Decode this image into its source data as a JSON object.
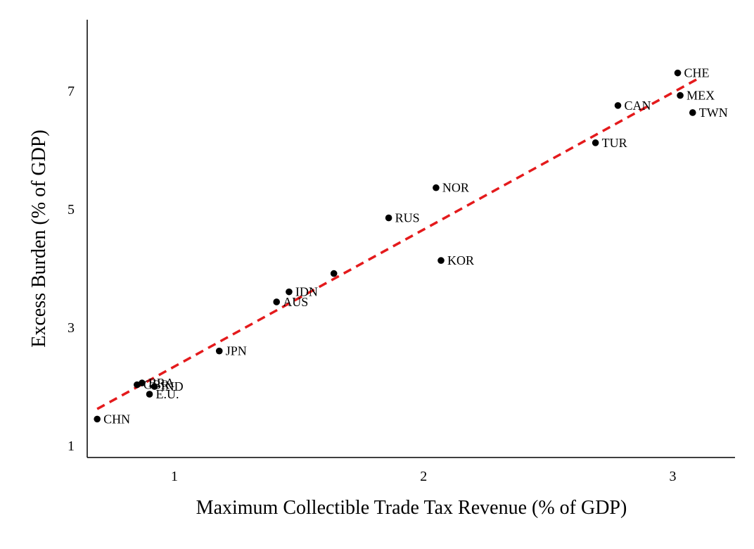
{
  "chart_data": {
    "type": "scatter",
    "title": "",
    "xlabel": "Maximum Collectible Trade Tax Revenue (% of GDP)",
    "ylabel": "Excess Burden (% of GDP)",
    "xlim": [
      0.65,
      3.25
    ],
    "ylim": [
      0.8,
      8.2
    ],
    "xticks": [
      1,
      2,
      3
    ],
    "yticks": [
      1,
      3,
      5,
      7
    ],
    "grid": false,
    "colors": {
      "points": "#000000",
      "fit_line": "#e41a1c"
    },
    "points": [
      {
        "label": "CHE",
        "x": 3.02,
        "y": 7.3
      },
      {
        "label": "MEX",
        "x": 3.03,
        "y": 6.92
      },
      {
        "label": "CAN",
        "x": 2.78,
        "y": 6.75
      },
      {
        "label": "TWN",
        "x": 3.08,
        "y": 6.63
      },
      {
        "label": "TUR",
        "x": 2.69,
        "y": 6.12
      },
      {
        "label": "NOR",
        "x": 2.05,
        "y": 5.36
      },
      {
        "label": "RUS",
        "x": 1.86,
        "y": 4.85
      },
      {
        "label": "KOR",
        "x": 2.07,
        "y": 4.13
      },
      {
        "label": "",
        "x": 1.64,
        "y": 3.91
      },
      {
        "label": "IDN",
        "x": 1.46,
        "y": 3.6
      },
      {
        "label": "AUS",
        "x": 1.41,
        "y": 3.43
      },
      {
        "label": "JPN",
        "x": 1.18,
        "y": 2.6
      },
      {
        "label": "BRA",
        "x": 0.87,
        "y": 2.06
      },
      {
        "label": "GBR",
        "x": 0.85,
        "y": 2.03
      },
      {
        "label": "IND",
        "x": 0.92,
        "y": 2.0
      },
      {
        "label": "E.U.",
        "x": 0.9,
        "y": 1.87
      },
      {
        "label": "CHN",
        "x": 0.69,
        "y": 1.45
      }
    ],
    "fit_line": {
      "x": [
        0.69,
        3.1
      ],
      "y": [
        1.62,
        7.2
      ]
    }
  }
}
